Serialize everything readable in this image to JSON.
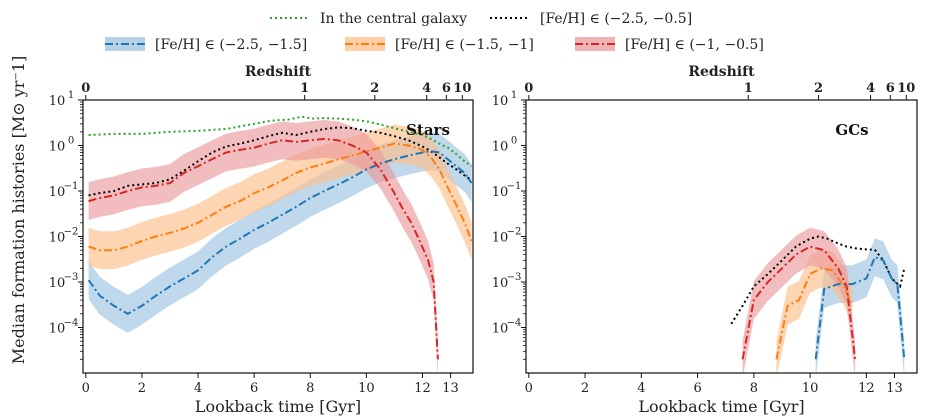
{
  "chart_data": {
    "type": "area",
    "legend": [
      {
        "name": "In the central galaxy",
        "color": "#2ca02c",
        "style": "dotted"
      },
      {
        "name": "[Fe/H] ∈ (−2.5, −0.5]",
        "color": "#000000",
        "style": "dotted"
      },
      {
        "name": "[Fe/H] ∈ (−2.5, −1.5]",
        "color": "#1f77b4",
        "style": "dashdot",
        "band": "#9cc3e0"
      },
      {
        "name": "[Fe/H] ∈ (−1.5, −1]",
        "color": "#ff7f0e",
        "style": "dashdot",
        "band": "#fdbf8a"
      },
      {
        "name": "[Fe/H] ∈ (−1, −0.5]",
        "color": "#d62728",
        "style": "dashdot",
        "band": "#eb9a9b"
      }
    ],
    "shared": {
      "ylabel": "Median formation histories [M⊙ yr⁻1]",
      "xlabel": "Lookback time [Gyr]",
      "top_xlabel": "Redshift",
      "ylim_log10": [
        -5,
        1
      ],
      "xlim": [
        -0.1,
        13.8
      ],
      "yticks": [
        {
          "exp": 1,
          "text": "10"
        },
        {
          "exp": 0,
          "text": "10"
        },
        {
          "exp": -1,
          "text": "10"
        },
        {
          "exp": -2,
          "text": "10"
        },
        {
          "exp": -3,
          "text": "10"
        },
        {
          "exp": -4,
          "text": "10"
        }
      ],
      "ytick_exps": [
        "1",
        "0",
        "−1",
        "−2",
        "−3",
        "−4"
      ],
      "bottom_ticks": [
        0,
        2,
        4,
        6,
        8,
        10,
        12,
        13
      ],
      "bottom_tick_labels": [
        "0",
        "2",
        "4",
        "6",
        "8",
        "10",
        "12",
        "13"
      ],
      "top_ticks": [
        0,
        1,
        2,
        4,
        6,
        10
      ],
      "top_tick_labels": [
        "0",
        "1",
        "2",
        "4",
        "6",
        "10"
      ],
      "top_tick_positions_gyr": [
        0,
        7.8,
        10.3,
        12.15,
        12.85,
        13.42
      ]
    },
    "panels": [
      {
        "label": "Stars",
        "series": [
          {
            "name": "In the central galaxy",
            "x": [
              0.1,
              1,
              2,
              3,
              4,
              5,
              6,
              6.6,
              7.2,
              7.7,
              8.1,
              8.5,
              9,
              9.5,
              10,
              10.5,
              11,
              11.5,
              12,
              12.3,
              12.6,
              12.9,
              13.2,
              13.5,
              13.75
            ],
            "y": [
              1.7,
              1.8,
              1.8,
              2.0,
              2.1,
              2.3,
              3.0,
              3.5,
              3.7,
              4.3,
              3.9,
              4.0,
              3.9,
              3.7,
              3.4,
              2.9,
              2.4,
              2.0,
              1.7,
              1.4,
              1.1,
              0.9,
              0.65,
              0.45,
              0.35
            ]
          },
          {
            "name": "[Fe/H] ∈ (−2.5, −0.5]",
            "x": [
              0.1,
              0.5,
              1,
              1.5,
              2,
              2.5,
              3,
              3.5,
              4,
              4.5,
              5,
              5.5,
              6,
              6.5,
              7,
              7.5,
              8,
              8.5,
              9,
              9.5,
              10,
              10.5,
              11,
              11.5,
              12,
              12.3,
              12.6,
              12.9,
              13.2,
              13.5,
              13.75
            ],
            "y": [
              0.08,
              0.09,
              0.1,
              0.13,
              0.14,
              0.15,
              0.18,
              0.28,
              0.45,
              0.7,
              0.95,
              1.1,
              1.3,
              1.6,
              1.9,
              1.7,
              2.0,
              2.3,
              2.5,
              2.4,
              2.1,
              1.9,
              1.6,
              1.3,
              0.95,
              0.75,
              0.55,
              0.4,
              0.3,
              0.22,
              0.17
            ]
          },
          {
            "name": "[Fe/H] ∈ (−2.5, −1.5]",
            "x": [
              0.1,
              0.5,
              1,
              1.5,
              2,
              2.5,
              3,
              3.5,
              4,
              4.5,
              5,
              5.5,
              6,
              6.5,
              7,
              7.5,
              8,
              8.5,
              9,
              9.5,
              10,
              10.5,
              11,
              11.5,
              12,
              12.3,
              12.6,
              12.9,
              13.2,
              13.5,
              13.75
            ],
            "y": [
              0.0011,
              0.0005,
              0.0003,
              0.0002,
              0.0003,
              0.0005,
              0.0008,
              0.0012,
              0.0018,
              0.0035,
              0.006,
              0.009,
              0.014,
              0.02,
              0.03,
              0.045,
              0.07,
              0.1,
              0.14,
              0.2,
              0.3,
              0.4,
              0.5,
              0.6,
              0.7,
              0.75,
              0.7,
              0.5,
              0.35,
              0.25,
              0.15
            ]
          },
          {
            "name": "[Fe/H] ∈ (−1.5, −1]",
            "x": [
              0.1,
              0.5,
              1,
              1.5,
              2,
              2.5,
              3,
              3.5,
              4,
              4.5,
              5,
              5.5,
              6,
              6.5,
              7,
              7.5,
              8,
              8.5,
              9,
              9.5,
              10,
              10.5,
              11,
              11.5,
              12,
              12.3,
              12.6,
              12.9,
              13.2,
              13.5,
              13.75
            ],
            "y": [
              0.006,
              0.005,
              0.005,
              0.006,
              0.008,
              0.01,
              0.012,
              0.015,
              0.02,
              0.03,
              0.045,
              0.06,
              0.09,
              0.12,
              0.17,
              0.25,
              0.33,
              0.4,
              0.5,
              0.6,
              0.75,
              0.9,
              1.1,
              1.0,
              0.8,
              0.55,
              0.3,
              0.12,
              0.05,
              0.02,
              0.008
            ]
          },
          {
            "name": "[Fe/H] ∈ (−1, −0.5]",
            "x": [
              0.1,
              0.5,
              1,
              1.5,
              2,
              2.5,
              3,
              3.5,
              4,
              4.5,
              5,
              5.5,
              6,
              6.5,
              7,
              7.5,
              8,
              8.5,
              9,
              9.5,
              10,
              10.5,
              11,
              11.3,
              11.6,
              11.9,
              12.2,
              12.4,
              12.55
            ],
            "y": [
              0.06,
              0.07,
              0.08,
              0.1,
              0.12,
              0.13,
              0.15,
              0.25,
              0.35,
              0.5,
              0.7,
              0.8,
              0.9,
              1.1,
              1.3,
              1.2,
              1.3,
              1.4,
              1.3,
              1.0,
              0.7,
              0.3,
              0.09,
              0.04,
              0.02,
              0.008,
              0.003,
              0.001,
              2e-05
            ]
          }
        ]
      },
      {
        "label": "GCs",
        "series": [
          {
            "name": "[Fe/H] ∈ (−2.5, −0.5]",
            "x": [
              7.2,
              7.6,
              8,
              8.5,
              9,
              9.5,
              10,
              10.3,
              10.6,
              11,
              11.3,
              11.6,
              12,
              12.3,
              12.6,
              12.9,
              13.2,
              13.35
            ],
            "y": [
              0.00012,
              0.0003,
              0.0008,
              0.0015,
              0.003,
              0.006,
              0.009,
              0.01,
              0.009,
              0.007,
              0.006,
              0.0055,
              0.0052,
              0.0051,
              0.003,
              0.0012,
              0.0008,
              0.002
            ]
          },
          {
            "name": "[Fe/H] ∈ (−2.5, −1.5]",
            "x": [
              10.2,
              10.5,
              11,
              11.5,
              12,
              12.3,
              12.6,
              12.9,
              13.1,
              13.35
            ],
            "y": [
              2e-05,
              0.0007,
              0.0009,
              0.0009,
              0.0012,
              0.0035,
              0.003,
              0.0012,
              0.0009,
              2e-05
            ]
          },
          {
            "name": "[Fe/H] ∈ (−1.5, −1]",
            "x": [
              8.8,
              9.2,
              9.6,
              10,
              10.4,
              10.8,
              11.2,
              11.5
            ],
            "y": [
              2e-05,
              0.0003,
              0.0004,
              0.0015,
              0.002,
              0.0018,
              0.0008,
              0.0003
            ]
          },
          {
            "name": "[Fe/H] ∈ (−1, −0.5]",
            "x": [
              7.6,
              8,
              8.5,
              9,
              9.5,
              10,
              10.5,
              11,
              11.3,
              11.6
            ],
            "y": [
              2e-05,
              0.0004,
              0.001,
              0.002,
              0.004,
              0.006,
              0.005,
              0.002,
              0.0008,
              2e-05
            ]
          }
        ]
      }
    ]
  }
}
